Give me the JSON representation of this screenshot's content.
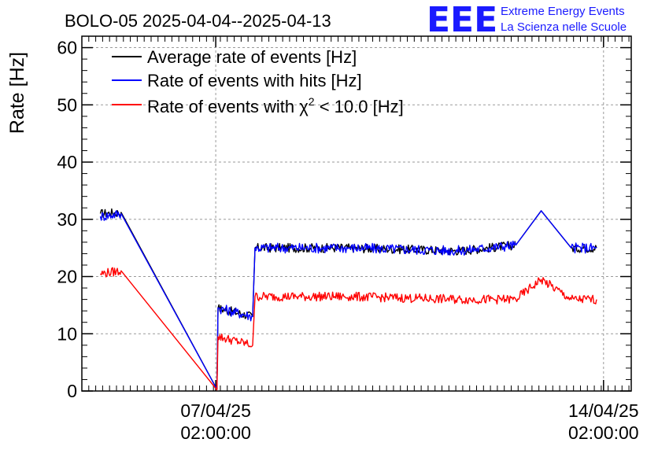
{
  "chart_data": {
    "type": "line",
    "title": "BOLO-05 2025-04-04--2025-04-13",
    "ylabel": "Rate [Hz]",
    "xlabel": "",
    "ylim": [
      0,
      62
    ],
    "yticks": [
      0,
      10,
      20,
      30,
      40,
      50,
      60
    ],
    "xlim": [
      "2025-04-04 16:00:00",
      "2025-04-14 14:00:00"
    ],
    "xticks": [
      {
        "value": "2025-04-07 02:00:00",
        "label_date": "07/04/25",
        "label_time": "02:00:00"
      },
      {
        "value": "2025-04-14 02:00:00",
        "label_date": "14/04/25",
        "label_time": "02:00:00"
      }
    ],
    "grid": true,
    "legend_position": "top-left",
    "series": [
      {
        "name": "Average rate of events [Hz]",
        "color": "#000000",
        "points": [
          [
            "2025-04-05 00:00",
            31.0
          ],
          [
            "2025-04-05 09:00",
            31.2
          ],
          [
            "2025-04-07 02:30",
            0.3
          ],
          [
            "2025-04-07 03:00",
            14.5
          ],
          [
            "2025-04-07 18:00",
            13.0
          ],
          [
            "2025-04-07 19:00",
            25.0
          ],
          [
            "2025-04-09 12:00",
            25.0
          ],
          [
            "2025-04-11 12:00",
            24.5
          ],
          [
            "2025-04-12 12:00",
            25.5
          ],
          [
            "2025-04-12 23:00",
            31.5
          ],
          [
            "2025-04-13 12:00",
            25.0
          ],
          [
            "2025-04-13 23:00",
            25.0
          ]
        ]
      },
      {
        "name": "Rate of events with hits [Hz]",
        "color": "#0000ff",
        "points": [
          [
            "2025-04-05 00:00",
            30.5
          ],
          [
            "2025-04-05 09:00",
            31.0
          ],
          [
            "2025-04-07 02:30",
            0.3
          ],
          [
            "2025-04-07 03:00",
            14.5
          ],
          [
            "2025-04-07 18:00",
            13.0
          ],
          [
            "2025-04-07 19:00",
            25.0
          ],
          [
            "2025-04-09 12:00",
            25.0
          ],
          [
            "2025-04-11 12:00",
            24.5
          ],
          [
            "2025-04-12 12:00",
            25.5
          ],
          [
            "2025-04-12 23:00",
            31.5
          ],
          [
            "2025-04-13 12:00",
            25.0
          ],
          [
            "2025-04-13 23:00",
            25.0
          ]
        ]
      },
      {
        "name": "Rate of events with χ² < 10.0 [Hz]",
        "color": "#ff0000",
        "points": [
          [
            "2025-04-05 00:00",
            20.5
          ],
          [
            "2025-04-05 09:00",
            21.0
          ],
          [
            "2025-04-07 02:30",
            0.2
          ],
          [
            "2025-04-07 03:00",
            9.5
          ],
          [
            "2025-04-07 18:00",
            8.0
          ],
          [
            "2025-04-07 19:00",
            16.5
          ],
          [
            "2025-04-09 12:00",
            16.5
          ],
          [
            "2025-04-11 12:00",
            16.0
          ],
          [
            "2025-04-12 12:00",
            16.0
          ],
          [
            "2025-04-12 23:00",
            19.5
          ],
          [
            "2025-04-13 12:00",
            16.0
          ],
          [
            "2025-04-13 23:00",
            16.0
          ]
        ]
      }
    ]
  },
  "logo": {
    "mark": "EEE",
    "line1": "Extreme Energy Events",
    "line2": "La Scienza nelle Scuole"
  },
  "legend": {
    "avg_label": "Average rate of events [Hz]",
    "hits_label": "Rate of events with hits [Hz]",
    "chi_prefix": "Rate of events with ",
    "chi_symbol": "χ",
    "chi_sup": "2",
    "chi_suffix": " < 10.0 [Hz]"
  },
  "colors": {
    "average": "#000000",
    "hits": "#0000ff",
    "chi2": "#ff0000",
    "logo": "#1a1aff"
  }
}
